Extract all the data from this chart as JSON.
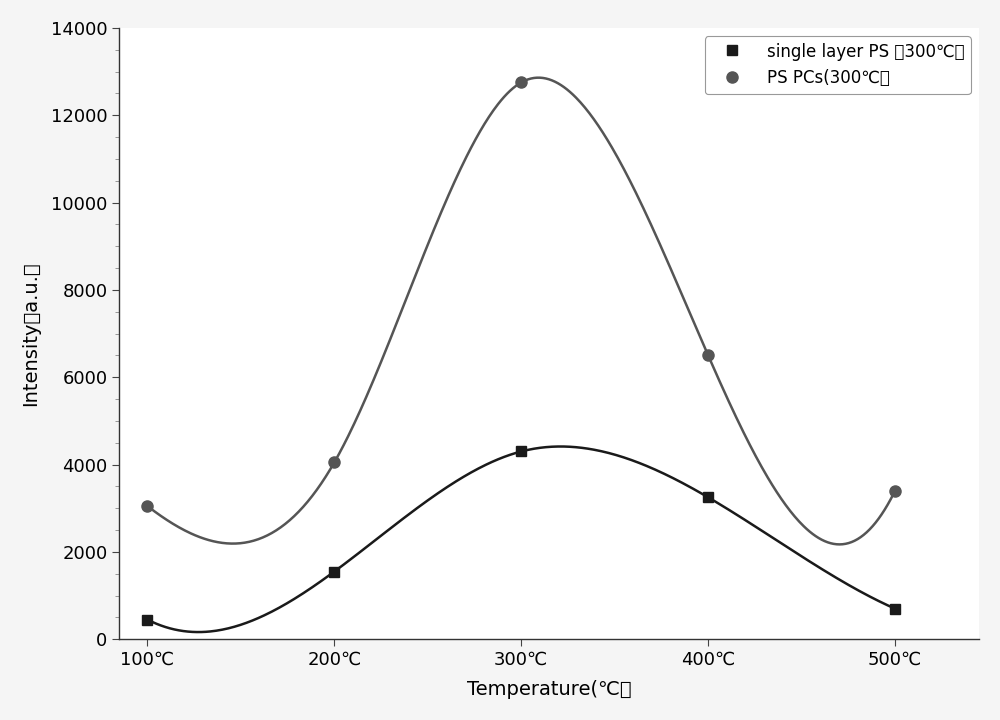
{
  "x_ticks": [
    100,
    200,
    300,
    400,
    500
  ],
  "x_tick_labels": [
    "100℃",
    "200℃",
    "300℃",
    "400℃",
    "500℃"
  ],
  "series1": {
    "label": "single layer PS （300℃）",
    "x": [
      100,
      200,
      300,
      400,
      500
    ],
    "y": [
      450,
      1550,
      4300,
      3250,
      700
    ],
    "color": "#1a1a1a",
    "marker": "s",
    "markersize": 7,
    "linewidth": 1.8
  },
  "series2": {
    "label": "PS PCs(300℃）",
    "x": [
      100,
      200,
      300,
      400,
      500
    ],
    "y": [
      3050,
      4050,
      12750,
      6500,
      3400
    ],
    "color": "#555555",
    "marker": "o",
    "markersize": 8,
    "linewidth": 1.8
  },
  "xlabel": "Temperature(℃）",
  "ylabel": "Intensity（a.u.）",
  "ylim": [
    0,
    14000
  ],
  "xlim": [
    85,
    545
  ],
  "yticks": [
    0,
    2000,
    4000,
    6000,
    8000,
    10000,
    12000,
    14000
  ],
  "background_color": "#ffffff",
  "figure_bg": "#f5f5f5",
  "legend_loc": "upper right"
}
